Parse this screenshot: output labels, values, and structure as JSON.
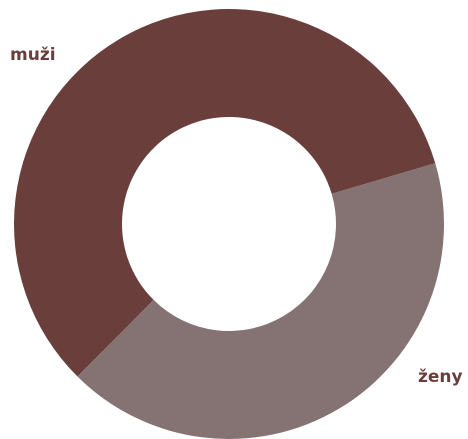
{
  "chart_data": {
    "type": "donut",
    "categories": [
      "muži",
      "ženy"
    ],
    "values": [
      58,
      42
    ],
    "colors": [
      "#6a3f3b",
      "#857273"
    ],
    "label_color": "#6a3f3b"
  }
}
